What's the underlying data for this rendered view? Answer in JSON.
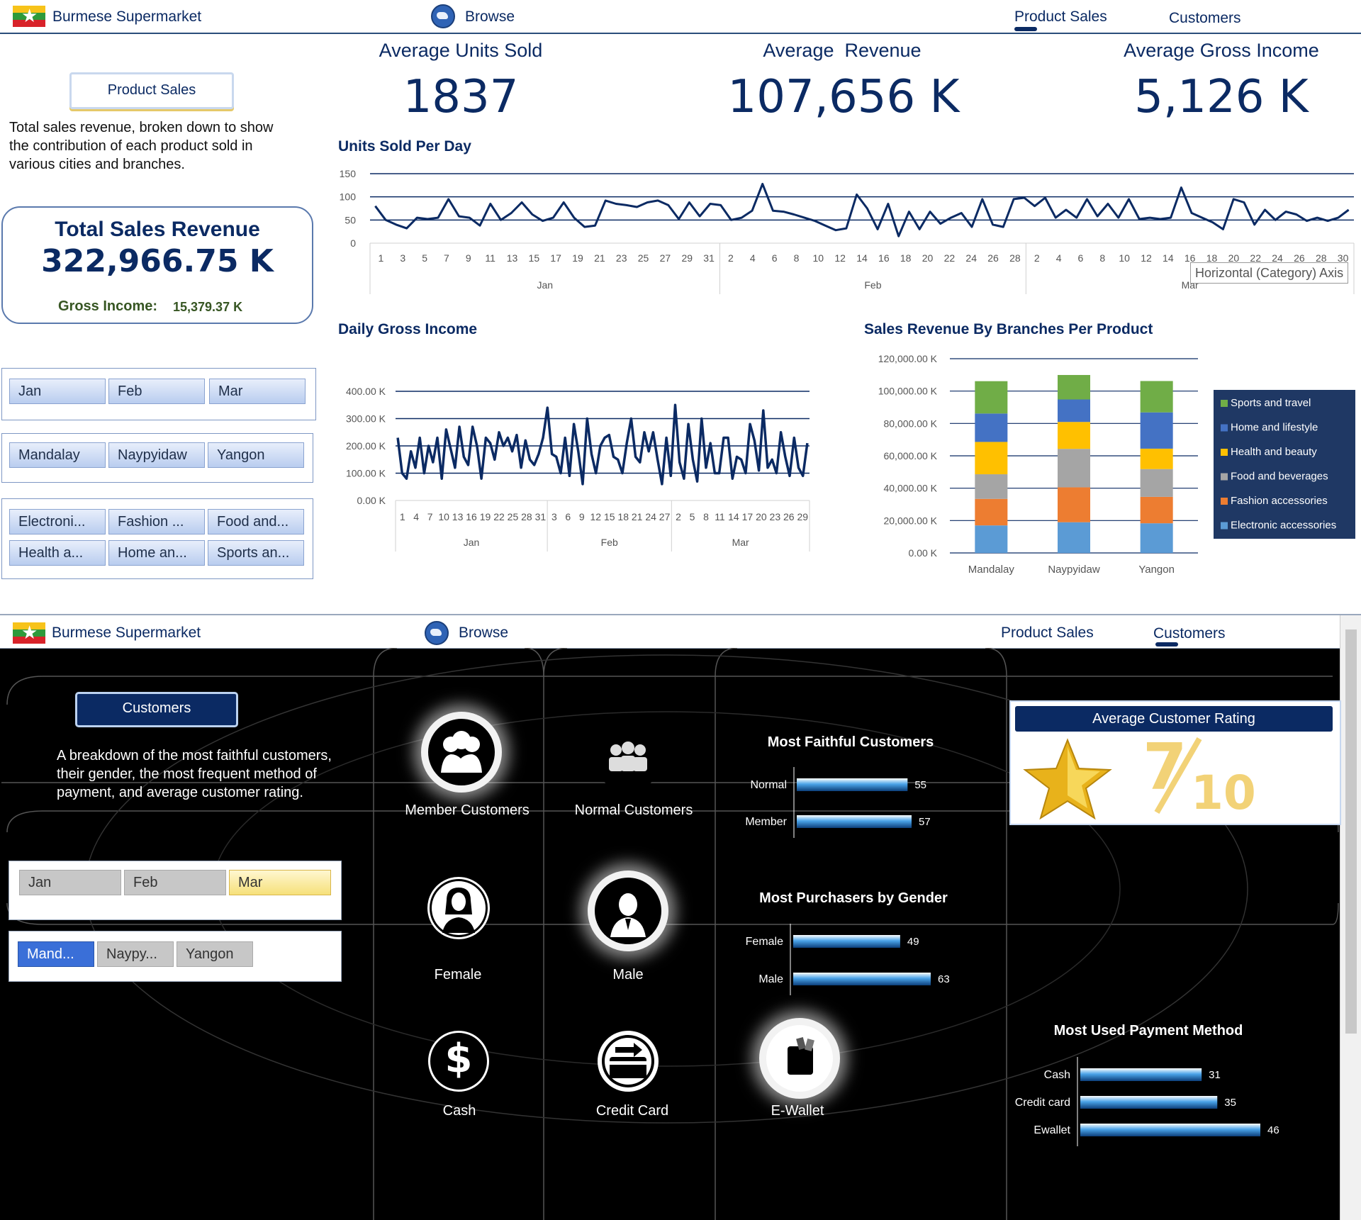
{
  "app": {
    "name": "Burmese Supermarket"
  },
  "nav": {
    "browse": "Browse",
    "product_sales": "Product Sales",
    "customers": "Customers"
  },
  "product_sales": {
    "kpis": [
      {
        "title": "Average Units Sold",
        "value": "1837"
      },
      {
        "title": "Average  Revenue",
        "value": "107,656 K"
      },
      {
        "title": "Average Gross Income",
        "value": "5,126 K"
      }
    ],
    "page_button": "Product Sales",
    "description": "Total sales revenue, broken down to show the contribution of each product sold in various cities and branches.",
    "total": {
      "title": "Total Sales Revenue",
      "value": "322,966.75 K",
      "gross_label": "Gross Income:",
      "gross_value": "15,379.37 K"
    },
    "slicers": {
      "months": [
        "Jan",
        "Feb",
        "Mar"
      ],
      "cities": [
        "Mandalay",
        "Naypyidaw",
        "Yangon"
      ],
      "products": [
        "Electroni...",
        "Fashion ...",
        "Food and...",
        "Health a...",
        "Home an...",
        "Sports an..."
      ]
    },
    "tooltip": "Horizontal (Category) Axis",
    "colors": {
      "navy": "#0b2a63",
      "line": "#0b2a63"
    }
  },
  "chart_data": [
    {
      "type": "line",
      "title": "Units Sold Per Day",
      "ylim": [
        0,
        150
      ],
      "yticks": [
        "150",
        "100",
        "50",
        "0"
      ],
      "groups": [
        "Jan",
        "Feb",
        "Mar"
      ],
      "x_ticks": {
        "Jan": [
          "1",
          "3",
          "5",
          "7",
          "9",
          "11",
          "13",
          "15",
          "17",
          "19",
          "21",
          "23",
          "25",
          "27",
          "29",
          "31"
        ],
        "Feb": [
          "2",
          "4",
          "6",
          "8",
          "10",
          "12",
          "14",
          "16",
          "18",
          "20",
          "22",
          "24",
          "26",
          "28"
        ],
        "Mar": [
          "2",
          "4",
          "6",
          "8",
          "10",
          "12",
          "14",
          "16",
          "18",
          "20",
          "22",
          "24",
          "26",
          "28",
          "30"
        ]
      },
      "values": [
        80,
        50,
        40,
        32,
        55,
        52,
        55,
        95,
        58,
        55,
        38,
        85,
        50,
        65,
        88,
        62,
        48,
        55,
        88,
        55,
        35,
        38,
        92,
        85,
        82,
        78,
        88,
        92,
        82,
        52,
        88,
        58,
        85,
        82,
        50,
        55,
        70,
        128,
        70,
        68,
        62,
        55,
        48,
        38,
        28,
        32,
        105,
        75,
        30,
        85,
        15,
        68,
        30,
        68,
        42,
        55,
        65,
        35,
        95,
        40,
        35,
        95,
        98,
        80,
        98,
        55,
        72,
        55,
        95,
        58,
        85,
        55,
        95,
        52,
        55,
        52,
        55,
        120,
        65,
        55,
        45,
        30,
        95,
        88,
        40,
        72,
        50,
        68,
        62,
        48,
        55,
        48,
        55,
        72
      ]
    },
    {
      "type": "line",
      "title": "Daily Gross Income",
      "ylim": [
        0,
        400
      ],
      "yticks": [
        "400.00 K",
        "300.00 K",
        "200.00 K",
        "100.00 K",
        "0.00 K"
      ],
      "groups": [
        "Jan",
        "Feb",
        "Mar"
      ],
      "x_ticks": {
        "Jan": [
          "1",
          "4",
          "7",
          "10",
          "13",
          "16",
          "19",
          "22",
          "25",
          "28",
          "31"
        ],
        "Feb": [
          "3",
          "6",
          "9",
          "12",
          "15",
          "18",
          "21",
          "24",
          "27"
        ],
        "Mar": [
          "2",
          "5",
          "8",
          "11",
          "14",
          "17",
          "20",
          "23",
          "26",
          "29"
        ]
      },
      "values": [
        230,
        100,
        80,
        180,
        120,
        230,
        100,
        200,
        140,
        230,
        80,
        260,
        190,
        120,
        270,
        160,
        130,
        270,
        200,
        80,
        230,
        210,
        150,
        250,
        200,
        230,
        180,
        240,
        120,
        220,
        150,
        130,
        170,
        230,
        340,
        170,
        160,
        100,
        230,
        90,
        280,
        180,
        60,
        300,
        170,
        100,
        200,
        230,
        240,
        160,
        150,
        100,
        210,
        300,
        160,
        140,
        250,
        180,
        250,
        150,
        60,
        230,
        90,
        350,
        140,
        80,
        280,
        150,
        70,
        300,
        120,
        210,
        100,
        100,
        230,
        230,
        80,
        160,
        150,
        100,
        280,
        220,
        110,
        330,
        120,
        150,
        100,
        250,
        160,
        90,
        230,
        120,
        90,
        210
      ]
    },
    {
      "type": "bar",
      "stacked": true,
      "title": "Sales Revenue By Branches Per Product",
      "categories": [
        "Mandalay",
        "Naypyidaw",
        "Yangon"
      ],
      "ylim": [
        0,
        120000
      ],
      "yticks": [
        "120,000.00 K",
        "100,000.00 K",
        "80,000.00 K",
        "60,000.00 K",
        "40,000.00 K",
        "20,000.00 K",
        "0.00 K"
      ],
      "legend_placement": "right",
      "series": [
        {
          "name": "Electronic accessories",
          "color": "#5b9bd5",
          "values": [
            17000,
            18970,
            18320
          ]
        },
        {
          "name": "Fashion accessories",
          "color": "#ed7d31",
          "values": [
            16400,
            21560,
            16330
          ]
        },
        {
          "name": "Food and beverages",
          "color": "#a5a5a5",
          "values": [
            15200,
            23770,
            17170
          ]
        },
        {
          "name": "Health and beauty",
          "color": "#ffc000",
          "values": [
            19980,
            16620,
            12600
          ]
        },
        {
          "name": "Home and lifestyle",
          "color": "#4472c4",
          "values": [
            17550,
            13900,
            22420
          ]
        },
        {
          "name": "Sports and travel",
          "color": "#70ad47",
          "values": [
            19990,
            15120,
            19370
          ]
        }
      ]
    },
    {
      "type": "bar",
      "orientation": "horizontal",
      "title": "Most Faithful Customers",
      "categories": [
        "Normal",
        "Member"
      ],
      "values": [
        55,
        57
      ]
    },
    {
      "type": "bar",
      "orientation": "horizontal",
      "title": "Most Purchasers by Gender",
      "categories": [
        "Female",
        "Male"
      ],
      "values": [
        49,
        63
      ]
    },
    {
      "type": "bar",
      "orientation": "horizontal",
      "title": "Most Used Payment Method",
      "categories": [
        "Cash",
        "Credit card",
        "Ewallet"
      ],
      "values": [
        31,
        35,
        46
      ]
    }
  ],
  "customers": {
    "page_button": "Customers",
    "description": "A breakdown of the most faithful customers, their gender, the most frequent method of payment, and average customer rating.",
    "icons": {
      "member": "Member Customers",
      "normal": "Normal Customers",
      "female": "Female",
      "male": "Male",
      "cash": "Cash",
      "credit": "Credit Card",
      "ewallet": "E-Wallet"
    },
    "rating": {
      "title": "Average Customer Rating",
      "numerator": "7",
      "denominator": "10"
    },
    "slicers": {
      "months": [
        "Jan",
        "Feb",
        "Mar"
      ],
      "cities": [
        "Mand...",
        "Naypy...",
        "Yangon"
      ]
    }
  }
}
